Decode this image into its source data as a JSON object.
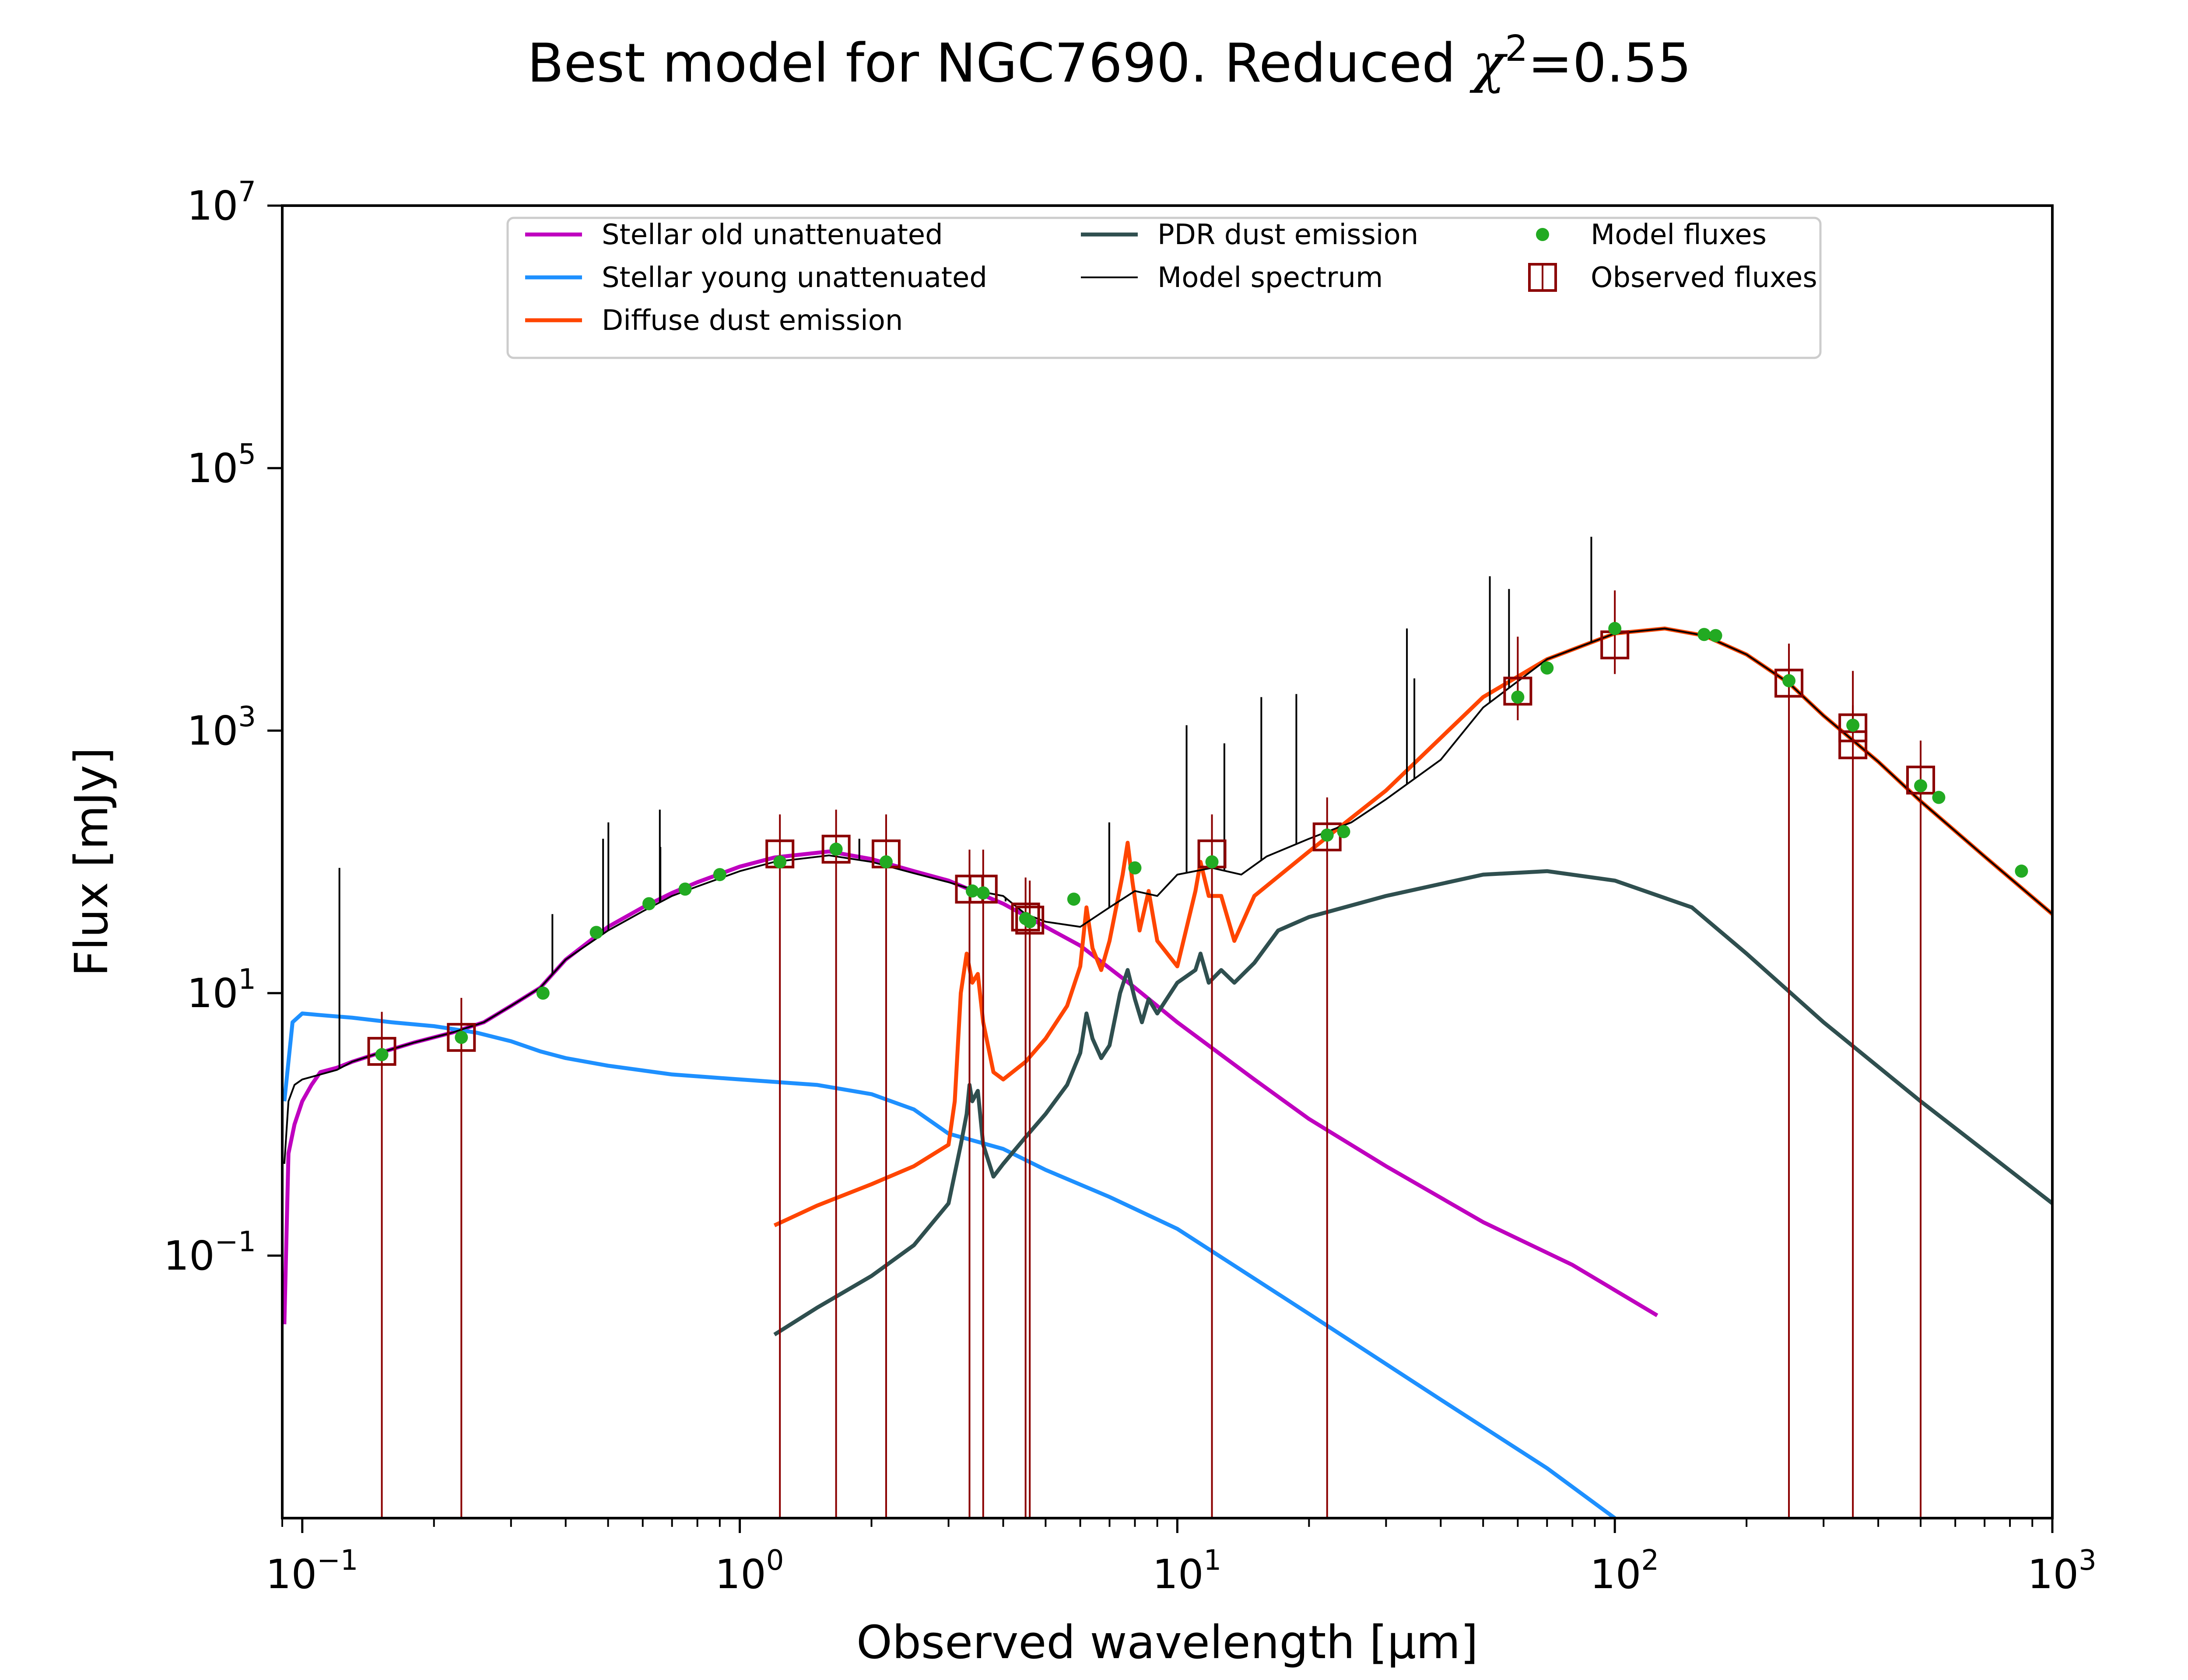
{
  "chart_data": {
    "type": "line",
    "title": {
      "prefix": "Best model for NGC7690. Reduced ",
      "chi_symbol": "χ",
      "chi_exponent": "2",
      "suffix": "=0.55"
    },
    "xlabel": "Observed wavelength [μm]",
    "ylabel": "Flux [mJy]",
    "xscale": "log",
    "yscale": "log",
    "xlim": [
      0.09,
      1000
    ],
    "ylim": [
      0.001,
      10000000
    ],
    "x_ticks": [
      {
        "value": 0.1,
        "base": "10",
        "exp": "−1"
      },
      {
        "value": 1,
        "base": "10",
        "exp": "0"
      },
      {
        "value": 10,
        "base": "10",
        "exp": "1"
      },
      {
        "value": 100,
        "base": "10",
        "exp": "2"
      },
      {
        "value": 1000,
        "base": "10",
        "exp": "3"
      }
    ],
    "y_ticks": [
      {
        "value": 0.1,
        "base": "10",
        "exp": "−1"
      },
      {
        "value": 10,
        "base": "10",
        "exp": "1"
      },
      {
        "value": 1000,
        "base": "10",
        "exp": "3"
      },
      {
        "value": 100000,
        "base": "10",
        "exp": "5"
      },
      {
        "value": 10000000,
        "base": "10",
        "exp": "7"
      }
    ],
    "legend_position": "top-center",
    "legend": [
      {
        "label": "Stellar old unattenuated",
        "kind": "line",
        "color": "#bf00bf"
      },
      {
        "label": "Stellar young unattenuated",
        "kind": "line",
        "color": "#1e90ff"
      },
      {
        "label": "Diffuse dust emission",
        "kind": "line",
        "color": "#ff4500"
      },
      {
        "label": "PDR dust emission",
        "kind": "line",
        "color": "#2f4f4f"
      },
      {
        "label": "Model spectrum",
        "kind": "thin-line",
        "color": "#000000"
      },
      {
        "label": "Model fluxes",
        "kind": "dot",
        "color": "#22aa22"
      },
      {
        "label": "Observed fluxes",
        "kind": "square",
        "color": "#8b0000"
      }
    ],
    "series": [
      {
        "name": "Stellar old unattenuated",
        "color": "#bf00bf",
        "x": [
          0.091,
          0.093,
          0.096,
          0.1,
          0.105,
          0.11,
          0.12,
          0.13,
          0.15,
          0.18,
          0.22,
          0.26,
          0.3,
          0.35,
          0.4,
          0.5,
          0.6,
          0.7,
          0.8,
          1.0,
          1.2,
          1.6,
          2.0,
          2.5,
          3.0,
          3.5,
          4.0,
          5.0,
          6.0,
          8.0,
          10,
          15,
          20,
          30,
          50,
          80,
          125
        ],
        "y": [
          0.03,
          0.6,
          1.0,
          1.5,
          2.0,
          2.5,
          2.7,
          3.0,
          3.5,
          4.2,
          5.0,
          6.0,
          8.0,
          11,
          18,
          32,
          45,
          58,
          70,
          92,
          108,
          120,
          105,
          85,
          72,
          58,
          48,
          32,
          23,
          11,
          6.0,
          2.2,
          1.1,
          0.48,
          0.18,
          0.085,
          0.035
        ]
      },
      {
        "name": "Stellar young unattenuated",
        "color": "#1e90ff",
        "x": [
          0.091,
          0.095,
          0.1,
          0.11,
          0.13,
          0.16,
          0.2,
          0.25,
          0.3,
          0.35,
          0.4,
          0.5,
          0.7,
          1.0,
          1.5,
          2.0,
          2.5,
          3.0,
          4.0,
          5.0,
          7.0,
          10,
          20,
          40,
          70,
          100
        ],
        "y": [
          1.5,
          6.0,
          7.0,
          6.8,
          6.5,
          6.0,
          5.6,
          5.0,
          4.3,
          3.6,
          3.2,
          2.8,
          2.4,
          2.2,
          2.0,
          1.7,
          1.3,
          0.85,
          0.65,
          0.45,
          0.28,
          0.16,
          0.036,
          0.008,
          0.0024,
          0.001
        ]
      },
      {
        "name": "Diffuse dust emission",
        "color": "#ff4500",
        "x": [
          1.2,
          1.5,
          2.0,
          2.5,
          3.0,
          3.1,
          3.2,
          3.3,
          3.4,
          3.5,
          3.6,
          3.8,
          4.0,
          4.5,
          5.0,
          5.6,
          6.0,
          6.2,
          6.4,
          6.7,
          7.0,
          7.5,
          7.7,
          7.9,
          8.2,
          8.6,
          9.0,
          10,
          11.0,
          11.3,
          11.8,
          12.6,
          13.5,
          15,
          20,
          30,
          50,
          70,
          100,
          130,
          160,
          200,
          250,
          300,
          400,
          500,
          700,
          1000
        ],
        "y": [
          0.17,
          0.24,
          0.35,
          0.48,
          0.7,
          1.5,
          10,
          20,
          12,
          14,
          6.0,
          2.5,
          2.2,
          3.0,
          4.5,
          8.0,
          16,
          45,
          22,
          15,
          25,
          80,
          140,
          70,
          30,
          60,
          25,
          16,
          60,
          100,
          55,
          55,
          25,
          55,
          120,
          350,
          1800,
          3500,
          5500,
          6000,
          5300,
          3800,
          2300,
          1300,
          580,
          290,
          110,
          40
        ]
      },
      {
        "name": "PDR dust emission",
        "color": "#2f4f4f",
        "x": [
          1.2,
          1.5,
          2.0,
          2.5,
          3.0,
          3.2,
          3.3,
          3.35,
          3.4,
          3.5,
          3.6,
          3.8,
          4.0,
          4.5,
          5.0,
          5.6,
          6.0,
          6.2,
          6.4,
          6.7,
          7.0,
          7.4,
          7.7,
          8.0,
          8.3,
          8.6,
          9.0,
          10,
          11.0,
          11.3,
          11.8,
          12.6,
          13.5,
          15,
          17,
          20,
          30,
          50,
          70,
          100,
          150,
          200,
          300,
          500,
          1000
        ],
        "y": [
          0.025,
          0.04,
          0.07,
          0.12,
          0.25,
          0.7,
          1.2,
          2.0,
          1.5,
          1.8,
          0.7,
          0.4,
          0.5,
          0.8,
          1.2,
          2.0,
          3.5,
          7.0,
          4.5,
          3.2,
          4.0,
          10,
          15,
          9.0,
          6.0,
          9.0,
          7.0,
          12,
          15,
          20,
          12,
          15,
          12,
          17,
          30,
          38,
          55,
          80,
          85,
          72,
          45,
          20,
          6.0,
          1.5,
          0.25
        ]
      },
      {
        "name": "Model spectrum",
        "color": "#000000",
        "x": [
          0.091,
          0.093,
          0.096,
          0.1,
          0.11,
          0.12,
          0.13,
          0.15,
          0.18,
          0.22,
          0.26,
          0.3,
          0.35,
          0.4,
          0.5,
          0.6,
          0.7,
          0.8,
          1.0,
          1.2,
          1.6,
          2.0,
          2.5,
          3.0,
          3.5,
          4.0,
          4.5,
          5.0,
          6.0,
          7.0,
          8.0,
          9.0,
          10,
          12,
          14,
          16,
          20,
          25,
          30,
          40,
          50,
          70,
          100,
          130,
          160,
          200,
          250,
          300,
          400,
          500,
          700,
          1000
        ],
        "y": [
          0.5,
          1.5,
          2.0,
          2.2,
          2.4,
          2.6,
          3.0,
          3.5,
          4.2,
          5.0,
          6.0,
          8.0,
          11,
          18,
          30,
          42,
          55,
          65,
          85,
          100,
          112,
          100,
          82,
          70,
          60,
          55,
          40,
          35,
          32,
          45,
          60,
          55,
          80,
          90,
          80,
          110,
          150,
          200,
          300,
          600,
          1500,
          3500,
          5500,
          6000,
          5300,
          3800,
          2300,
          1300,
          580,
          290,
          110,
          40
        ]
      }
    ],
    "model_spectrum_emission_lines": [
      {
        "x": 0.1216,
        "y_top": 90
      },
      {
        "x": 0.373,
        "y_top": 40
      },
      {
        "x": 0.487,
        "y_top": 150
      },
      {
        "x": 0.5008,
        "y_top": 200
      },
      {
        "x": 0.6565,
        "y_top": 250
      },
      {
        "x": 0.6585,
        "y_top": 130
      },
      {
        "x": 1.876,
        "y_top": 150
      },
      {
        "x": 4.05,
        "y_top": 50
      },
      {
        "x": 6.99,
        "y_top": 200
      },
      {
        "x": 10.5,
        "y_top": 1100
      },
      {
        "x": 12.81,
        "y_top": 800
      },
      {
        "x": 15.56,
        "y_top": 1800
      },
      {
        "x": 18.71,
        "y_top": 1900
      },
      {
        "x": 33.48,
        "y_top": 6000
      },
      {
        "x": 34.82,
        "y_top": 2500
      },
      {
        "x": 51.8,
        "y_top": 15000
      },
      {
        "x": 57.3,
        "y_top": 12000
      },
      {
        "x": 88.36,
        "y_top": 30000
      }
    ],
    "model_fluxes": [
      {
        "x": 0.152,
        "y": 3.4
      },
      {
        "x": 0.231,
        "y": 4.6
      },
      {
        "x": 0.355,
        "y": 10
      },
      {
        "x": 0.47,
        "y": 29
      },
      {
        "x": 0.62,
        "y": 48
      },
      {
        "x": 0.75,
        "y": 62
      },
      {
        "x": 0.9,
        "y": 80
      },
      {
        "x": 1.235,
        "y": 100
      },
      {
        "x": 1.66,
        "y": 125
      },
      {
        "x": 2.16,
        "y": 100
      },
      {
        "x": 3.4,
        "y": 60
      },
      {
        "x": 3.6,
        "y": 58
      },
      {
        "x": 4.5,
        "y": 37
      },
      {
        "x": 4.6,
        "y": 35
      },
      {
        "x": 5.8,
        "y": 52
      },
      {
        "x": 8.0,
        "y": 90
      },
      {
        "x": 12.0,
        "y": 100
      },
      {
        "x": 22.0,
        "y": 160
      },
      {
        "x": 24.0,
        "y": 170
      },
      {
        "x": 60.0,
        "y": 1800
      },
      {
        "x": 70.0,
        "y": 3000
      },
      {
        "x": 100.0,
        "y": 6000
      },
      {
        "x": 160.0,
        "y": 5400
      },
      {
        "x": 170.0,
        "y": 5300
      },
      {
        "x": 250.0,
        "y": 2400
      },
      {
        "x": 350.0,
        "y": 1100
      },
      {
        "x": 500.0,
        "y": 380
      },
      {
        "x": 550.0,
        "y": 310
      },
      {
        "x": 850.0,
        "y": 85
      }
    ],
    "observed_fluxes": [
      {
        "x": 0.152,
        "y": 3.6,
        "yerr_low": 3.6,
        "yerr_high": 3.6
      },
      {
        "x": 0.231,
        "y": 4.6,
        "yerr_low": 4.6,
        "yerr_high": 4.6
      },
      {
        "x": 1.235,
        "y": 115,
        "yerr_low": 115,
        "yerr_high": 115
      },
      {
        "x": 1.66,
        "y": 125,
        "yerr_low": 125,
        "yerr_high": 125
      },
      {
        "x": 2.16,
        "y": 115,
        "yerr_low": 115,
        "yerr_high": 115
      },
      {
        "x": 3.35,
        "y": 62,
        "yerr_low": 62,
        "yerr_high": 62
      },
      {
        "x": 3.6,
        "y": 62,
        "yerr_low": 62,
        "yerr_high": 62
      },
      {
        "x": 4.5,
        "y": 38,
        "yerr_low": 38,
        "yerr_high": 38
      },
      {
        "x": 4.6,
        "y": 36,
        "yerr_low": 36,
        "yerr_high": 36
      },
      {
        "x": 12.0,
        "y": 115,
        "yerr_low": 115,
        "yerr_high": 115
      },
      {
        "x": 22.0,
        "y": 155,
        "yerr_low": 155,
        "yerr_high": 155
      },
      {
        "x": 60.0,
        "y": 2000,
        "yerr_low": 800,
        "yerr_high": 3200
      },
      {
        "x": 100.0,
        "y": 4500,
        "yerr_low": 1800,
        "yerr_high": 7200
      },
      {
        "x": 250.0,
        "y": 2300,
        "yerr_low": 2300,
        "yerr_high": 2300
      },
      {
        "x": 350.0,
        "y": 1050,
        "yerr_low": 0.001,
        "yerr_high": 1800
      },
      {
        "x": 350.0,
        "y": 780,
        "yerr_low": 780,
        "yerr_high": 780
      },
      {
        "x": 500.0,
        "y": 420,
        "yerr_low": 420,
        "yerr_high": 420
      }
    ]
  }
}
